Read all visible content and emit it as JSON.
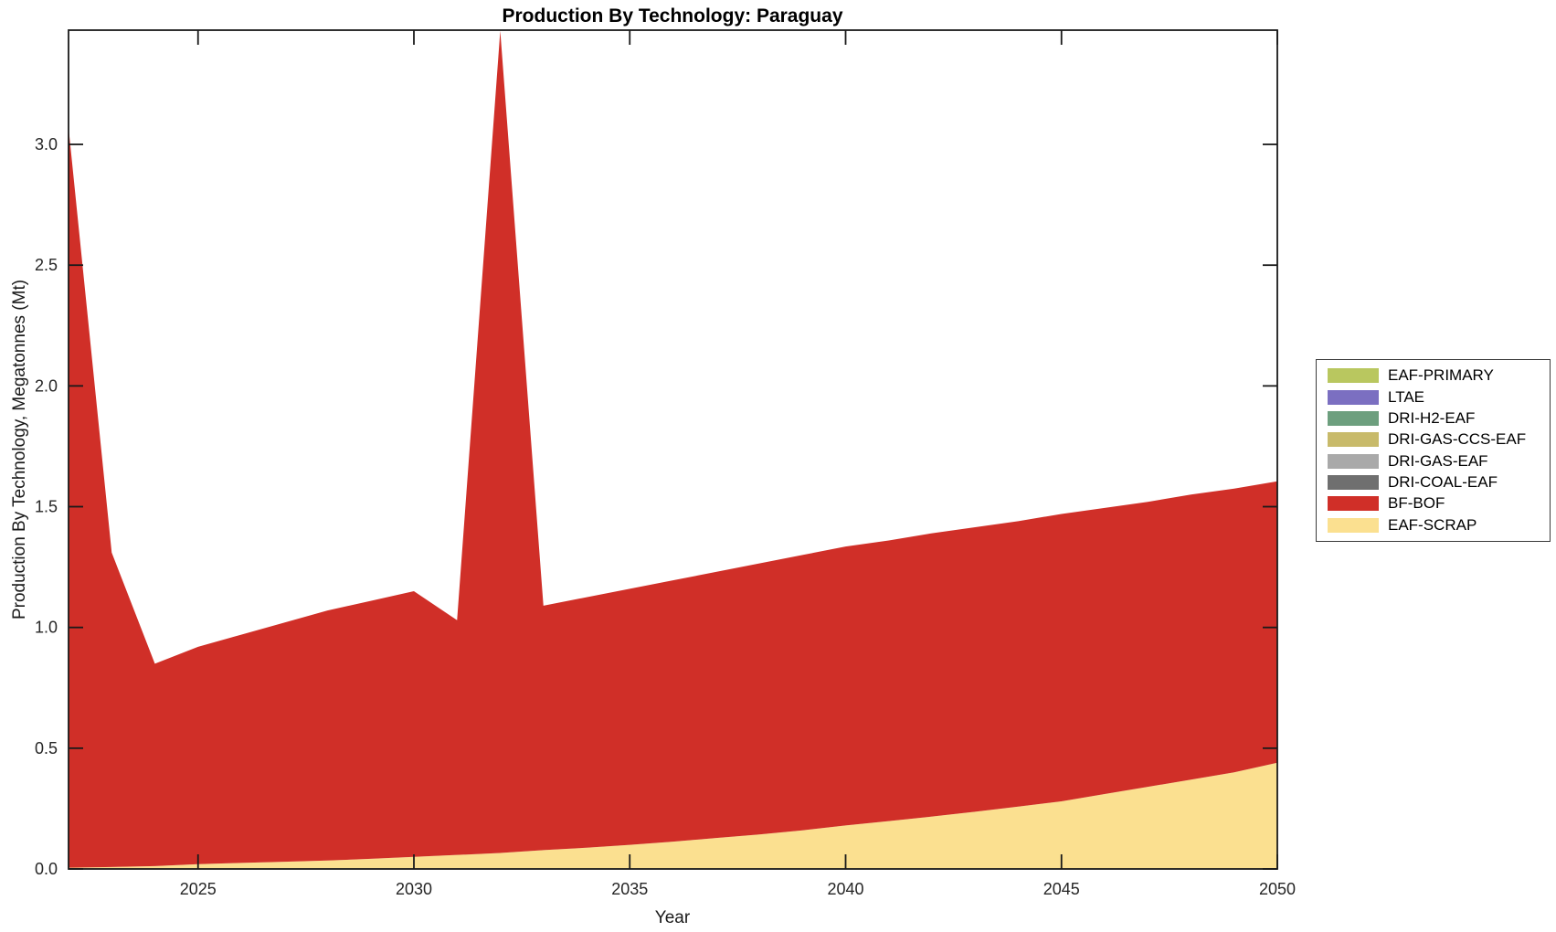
{
  "title": "Production By Technology: Paraguay",
  "chart_data": {
    "type": "area",
    "stacked": true,
    "title": "Production By Technology: Paraguay",
    "xlabel": "Year",
    "ylabel": "Production By Technology, Megatonnes (Mt)",
    "xlim": [
      2022,
      2050
    ],
    "ylim": [
      0,
      3.473
    ],
    "x_ticks": [
      2025,
      2030,
      2035,
      2040,
      2045,
      2050
    ],
    "y_ticks": [
      "0.0",
      "0.5",
      "1.0",
      "1.5",
      "2.0",
      "2.5",
      "3.0"
    ],
    "grid": false,
    "legend_position": "right-outside",
    "years": [
      2022,
      2023,
      2024,
      2025,
      2026,
      2027,
      2028,
      2029,
      2030,
      2031,
      2032,
      2033,
      2034,
      2035,
      2036,
      2037,
      2038,
      2039,
      2040,
      2041,
      2042,
      2043,
      2044,
      2045,
      2046,
      2047,
      2048,
      2049,
      2050
    ],
    "stack_order_bottom_to_top": [
      "EAF-SCRAP",
      "BF-BOF",
      "DRI-COAL-EAF",
      "DRI-GAS-EAF",
      "DRI-GAS-CCS-EAF",
      "DRI-H2-EAF",
      "LTAE",
      "EAF-PRIMARY"
    ],
    "series": [
      {
        "name": "EAF-SCRAP",
        "color": "#fbe090",
        "values": [
          0.005,
          0.008,
          0.012,
          0.02,
          0.025,
          0.03,
          0.035,
          0.042,
          0.05,
          0.058,
          0.066,
          0.078,
          0.088,
          0.1,
          0.113,
          0.128,
          0.143,
          0.16,
          0.18,
          0.198,
          0.217,
          0.237,
          0.258,
          0.28,
          0.31,
          0.34,
          0.37,
          0.4,
          0.44
        ]
      },
      {
        "name": "BF-BOF",
        "color": "#d02f28",
        "values": [
          3.065,
          1.302,
          0.838,
          0.9,
          0.945,
          0.99,
          1.035,
          1.068,
          1.1,
          0.972,
          3.404,
          1.012,
          1.037,
          1.06,
          1.082,
          1.102,
          1.122,
          1.14,
          1.155,
          1.162,
          1.173,
          1.178,
          1.182,
          1.19,
          1.185,
          1.18,
          1.18,
          1.175,
          1.165
        ]
      },
      {
        "name": "DRI-COAL-EAF",
        "color": "#6f6f6f",
        "values": [
          0,
          0,
          0,
          0,
          0,
          0,
          0,
          0,
          0,
          0,
          0,
          0,
          0,
          0,
          0,
          0,
          0,
          0,
          0,
          0,
          0,
          0,
          0,
          0,
          0,
          0,
          0,
          0,
          0
        ]
      },
      {
        "name": "DRI-GAS-EAF",
        "color": "#a9a9a9",
        "values": [
          0,
          0,
          0,
          0,
          0,
          0,
          0,
          0,
          0,
          0,
          0,
          0,
          0,
          0,
          0,
          0,
          0,
          0,
          0,
          0,
          0,
          0,
          0,
          0,
          0,
          0,
          0,
          0,
          0
        ]
      },
      {
        "name": "DRI-GAS-CCS-EAF",
        "color": "#c8ba6a",
        "values": [
          0,
          0,
          0,
          0,
          0,
          0,
          0,
          0,
          0,
          0,
          0,
          0,
          0,
          0,
          0,
          0,
          0,
          0,
          0,
          0,
          0,
          0,
          0,
          0,
          0,
          0,
          0,
          0,
          0
        ]
      },
      {
        "name": "DRI-H2-EAF",
        "color": "#6d9f7e",
        "values": [
          0,
          0,
          0,
          0,
          0,
          0,
          0,
          0,
          0,
          0,
          0,
          0,
          0,
          0,
          0,
          0,
          0,
          0,
          0,
          0,
          0,
          0,
          0,
          0,
          0,
          0,
          0,
          0,
          0
        ]
      },
      {
        "name": "LTAE",
        "color": "#7b6fc1",
        "values": [
          0,
          0,
          0,
          0,
          0,
          0,
          0,
          0,
          0,
          0,
          0,
          0,
          0,
          0,
          0,
          0,
          0,
          0,
          0,
          0,
          0,
          0,
          0,
          0,
          0,
          0,
          0,
          0,
          0
        ]
      },
      {
        "name": "EAF-PRIMARY",
        "color": "#b9c75f",
        "values": [
          0,
          0,
          0,
          0,
          0,
          0,
          0,
          0,
          0,
          0,
          0,
          0,
          0,
          0,
          0,
          0,
          0,
          0,
          0,
          0,
          0,
          0,
          0,
          0,
          0,
          0,
          0,
          0,
          0
        ]
      }
    ],
    "legend_entries_top_to_bottom": [
      "EAF-PRIMARY",
      "LTAE",
      "DRI-H2-EAF",
      "DRI-GAS-CCS-EAF",
      "DRI-GAS-EAF",
      "DRI-COAL-EAF",
      "BF-BOF",
      "EAF-SCRAP"
    ]
  },
  "axis": {
    "tick_color": "#1a1a1a",
    "box_color": "#1a1a1a",
    "tick_label_color": "#262626"
  }
}
